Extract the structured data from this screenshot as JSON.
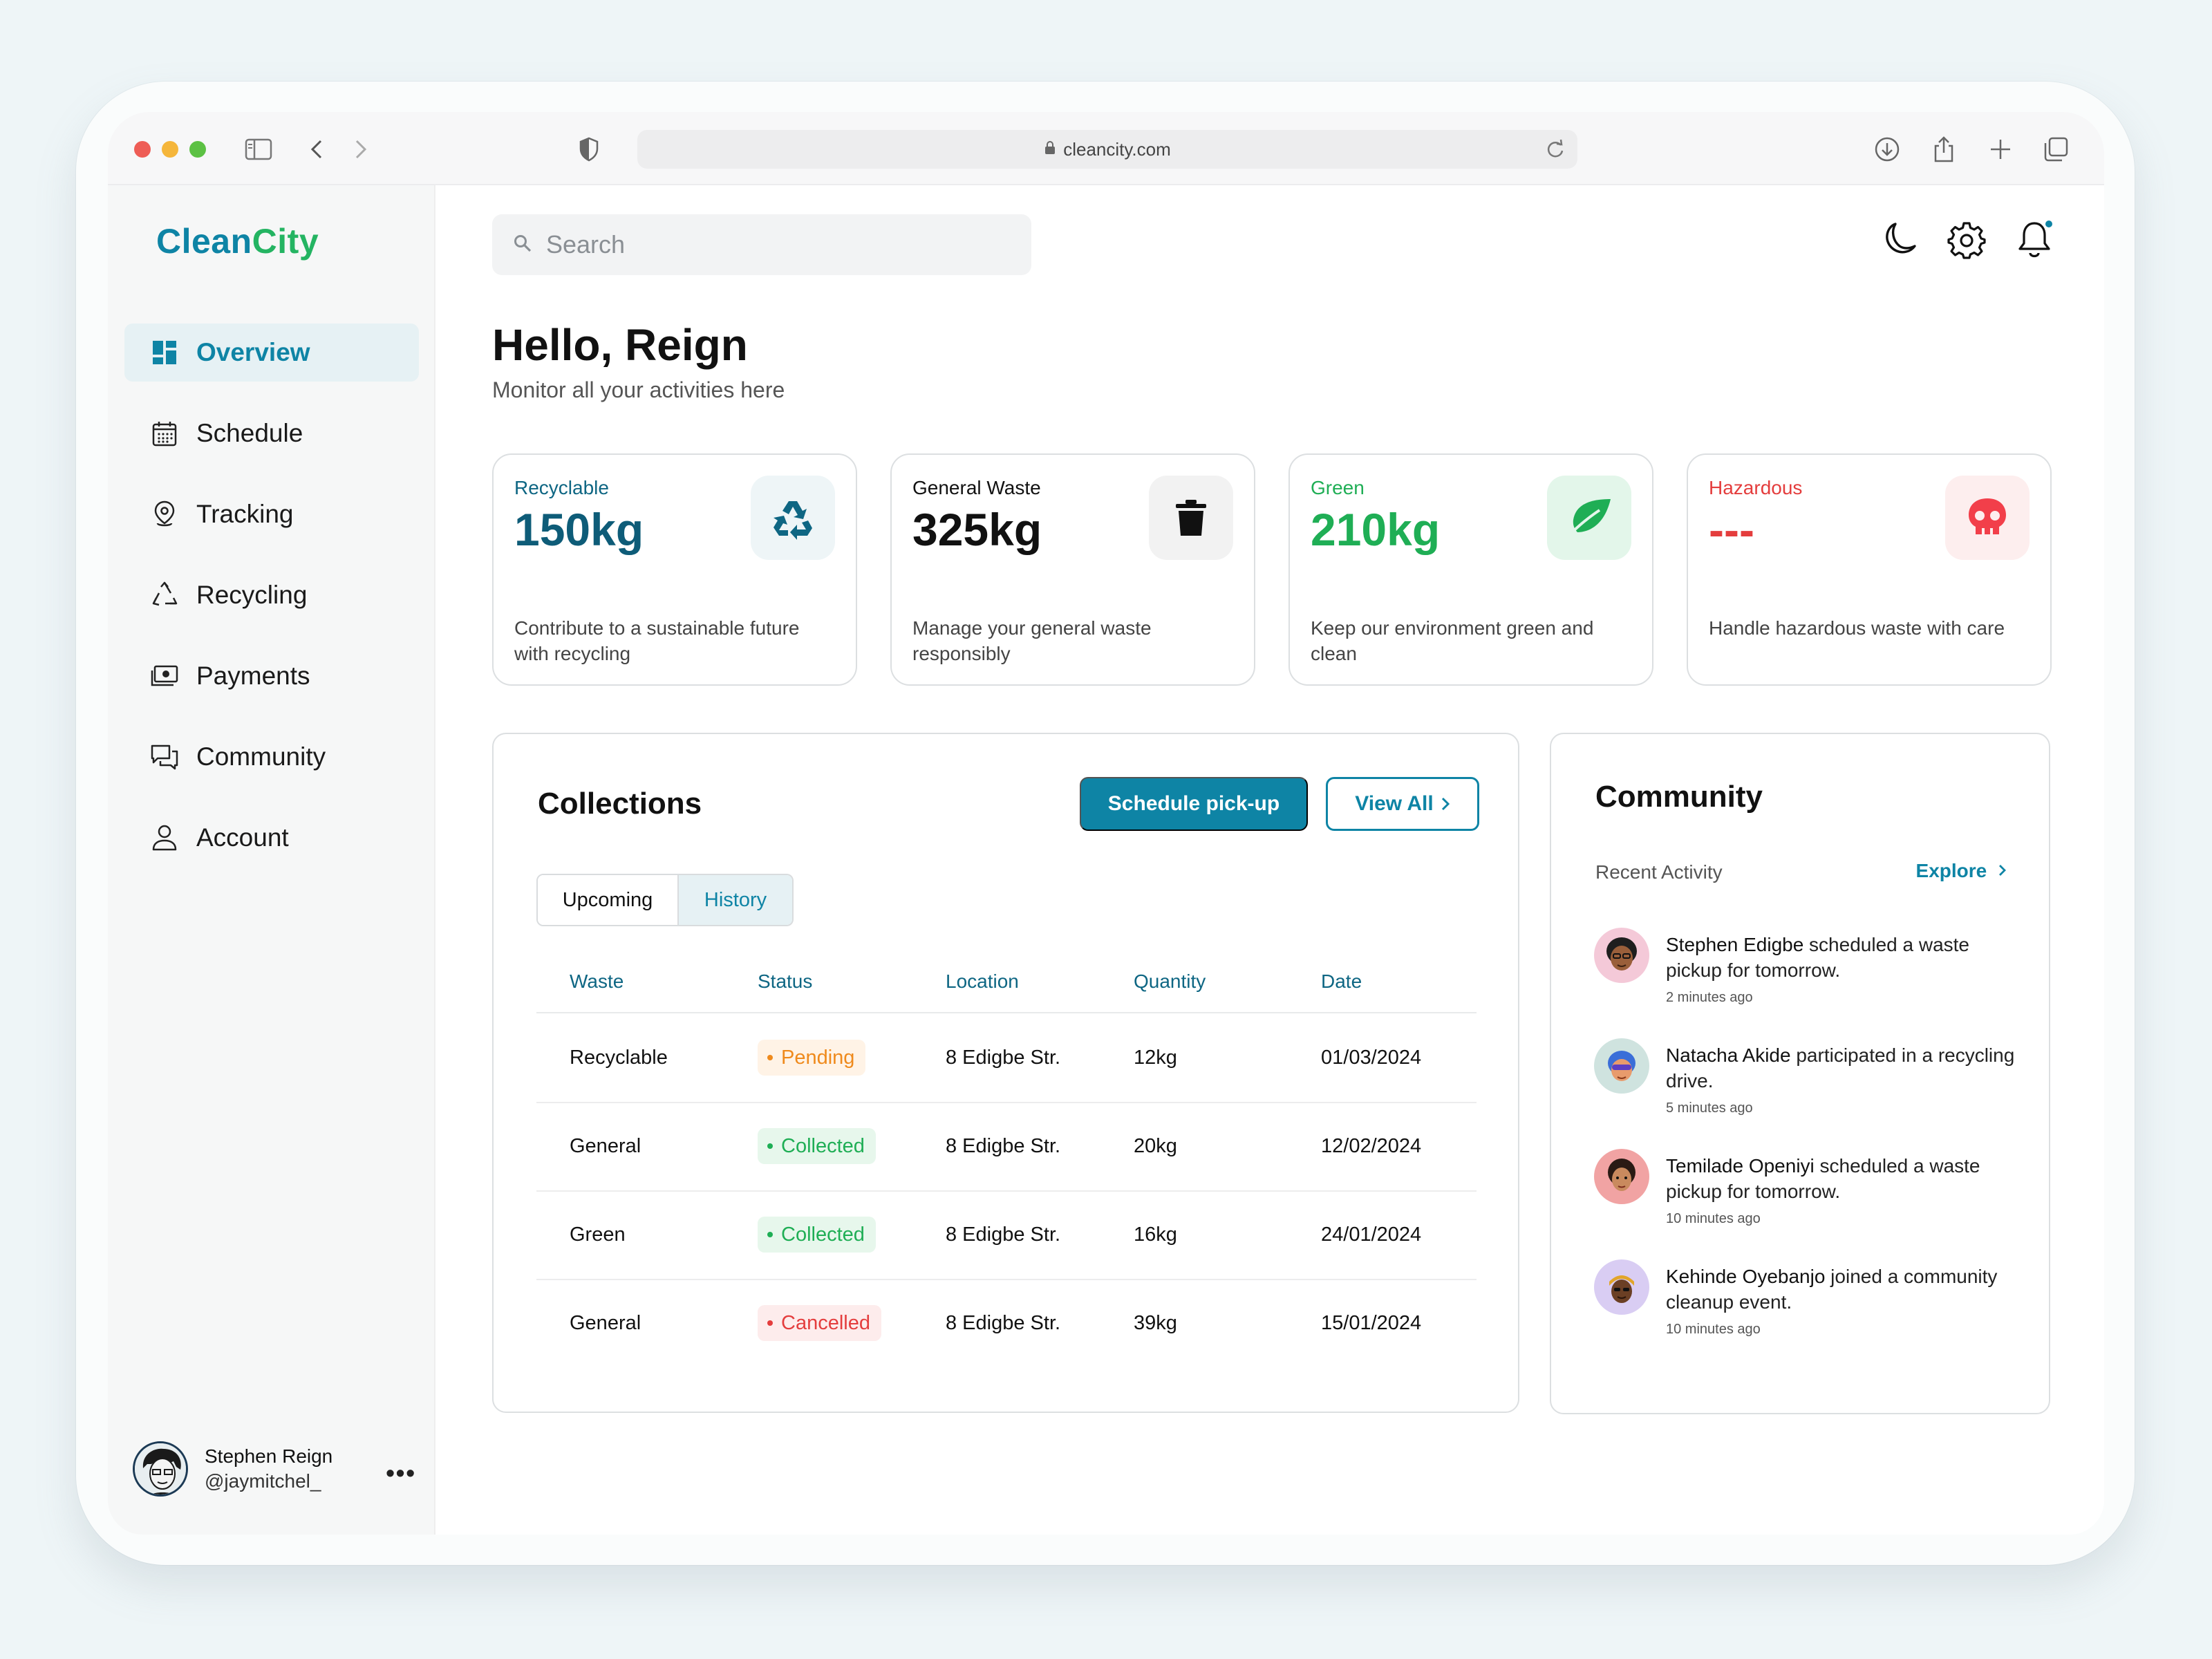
{
  "browser": {
    "url": "cleancity.com"
  },
  "app": {
    "logo_part1": "Clean",
    "logo_part2": "City",
    "accent": "#0e84a5",
    "green": "#24b462"
  },
  "nav": {
    "items": [
      {
        "label": "Overview",
        "icon": "dashboard-icon",
        "active": true
      },
      {
        "label": "Schedule",
        "icon": "calendar-icon"
      },
      {
        "label": "Tracking",
        "icon": "location-pin-icon"
      },
      {
        "label": "Recycling",
        "icon": "recycle-icon"
      },
      {
        "label": "Payments",
        "icon": "cash-icon"
      },
      {
        "label": "Community",
        "icon": "chat-icon"
      },
      {
        "label": "Account",
        "icon": "user-icon"
      }
    ]
  },
  "profile": {
    "name": "Stephen Reign",
    "handle": "@jaymitchel_"
  },
  "search": {
    "placeholder": "Search"
  },
  "header": {
    "greeting": "Hello, Reign",
    "subtitle": "Monitor all your activities here"
  },
  "cards": [
    {
      "title": "Recyclable",
      "value": "150kg",
      "desc": "Contribute to a sustainable future with recycling",
      "color": "#0e84a5",
      "icon": "recycle-icon"
    },
    {
      "title": "General Waste",
      "value": "325kg",
      "desc": "Manage your general waste responsibly",
      "color": "#111111",
      "icon": "trash-icon"
    },
    {
      "title": "Green",
      "value": "210kg",
      "desc": "Keep our environment green and clean",
      "color": "#1fae55",
      "icon": "leaf-icon"
    },
    {
      "title": "Hazardous",
      "value": "---",
      "desc": "Handle hazardous waste with care",
      "color": "#e43d3d",
      "icon": "skull-icon"
    }
  ],
  "collections": {
    "title": "Collections",
    "schedule_button": "Schedule pick-up",
    "view_all_button": "View All",
    "tabs": [
      "Upcoming",
      "History"
    ],
    "active_tab": "History",
    "columns": [
      "Waste",
      "Status",
      "Location",
      "Quantity",
      "Date"
    ],
    "rows": [
      {
        "waste": "Recyclable",
        "status": "Pending",
        "location": "8 Edigbe Str.",
        "quantity": "12kg",
        "date": "01/03/2024"
      },
      {
        "waste": "General",
        "status": "Collected",
        "location": "8 Edigbe Str.",
        "quantity": "20kg",
        "date": "12/02/2024"
      },
      {
        "waste": "Green",
        "status": "Collected",
        "location": "8 Edigbe Str.",
        "quantity": "16kg",
        "date": "24/01/2024"
      },
      {
        "waste": "General",
        "status": "Cancelled",
        "location": "8 Edigbe Str.",
        "quantity": "39kg",
        "date": "15/01/2024"
      }
    ]
  },
  "community": {
    "title": "Community",
    "recent_label": "Recent Activity",
    "explore_label": "Explore",
    "activities": [
      {
        "name": "Stephen Edigbe",
        "text": " scheduled a waste pickup for tomorrow.",
        "time": "2 minutes ago"
      },
      {
        "name": "Natacha Akide",
        "text": " participated in a recycling drive.",
        "time": "5 minutes ago"
      },
      {
        "name": "Temilade Openiyi",
        "text": " scheduled a waste pickup for tomorrow.",
        "time": "10 minutes ago"
      },
      {
        "name": "Kehinde Oyebanjo",
        "text": " joined a community cleanup event.",
        "time": "10 minutes ago"
      }
    ]
  }
}
